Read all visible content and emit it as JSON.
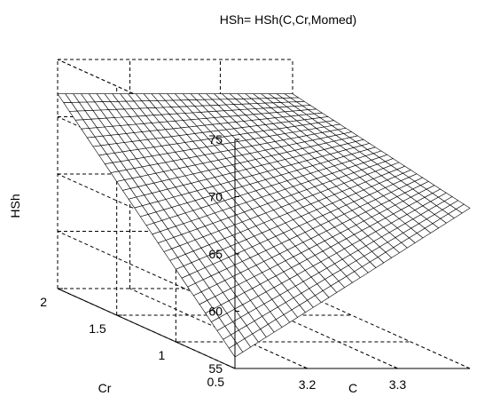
{
  "chart_data": {
    "type": "surface",
    "title": "HSh= HSh(C,Cr,Momed)",
    "xlabel": "C",
    "ylabel": "Cr",
    "zlabel": "HSh",
    "xlim": [
      3.12,
      3.38
    ],
    "ylim": [
      0.5,
      2
    ],
    "zlim": [
      55,
      75
    ],
    "xticks": [
      "3.2",
      "3.3"
    ],
    "yticks": [
      "0.5",
      "1",
      "1.5",
      "2"
    ],
    "zticks": [
      "55",
      "60",
      "65",
      "70",
      "75"
    ],
    "grid": true,
    "surface_range": {
      "x": [
        3.12,
        3.38
      ],
      "y": [
        0.5,
        2
      ]
    },
    "surface_corners": [
      {
        "C": 3.12,
        "Cr": 2.0,
        "HSh": 72.0
      },
      {
        "C": 3.12,
        "Cr": 0.5,
        "HSh": 56.0
      },
      {
        "C": 3.38,
        "Cr": 2.0,
        "HSh": 72.0
      },
      {
        "C": 3.38,
        "Cr": 0.5,
        "HSh": 69.0
      }
    ],
    "mesh_resolution": 30
  }
}
